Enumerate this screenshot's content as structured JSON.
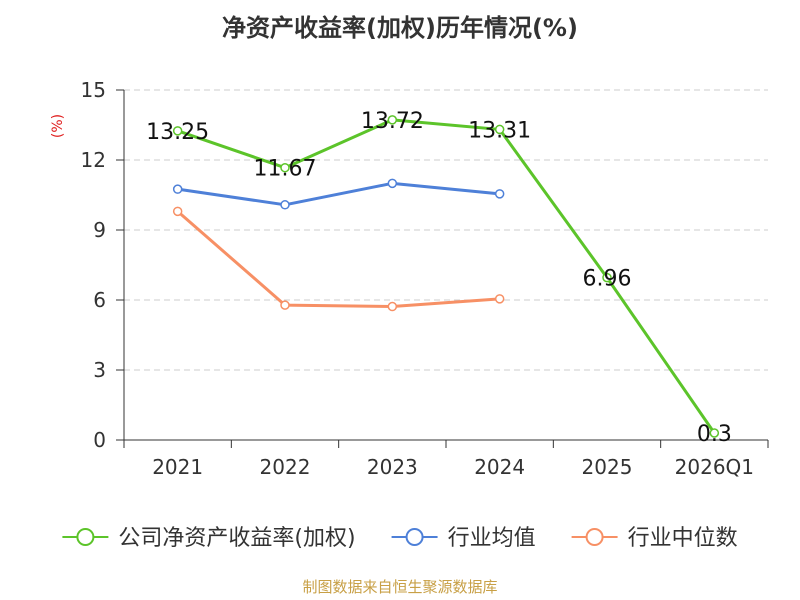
{
  "chart_data": {
    "type": "line",
    "title": "净资产收益率(加权)历年情况(%)",
    "ylabel": "(%)",
    "xlabel": "",
    "categories": [
      "2021",
      "2022",
      "2023",
      "2024",
      "2025",
      "2026Q1"
    ],
    "yticks": [
      "0",
      "3",
      "6",
      "9",
      "12",
      "15"
    ],
    "ylim": [
      0,
      15
    ],
    "grid": true,
    "legend_position": "bottom",
    "series": [
      {
        "name": "公司净资产收益率(加权)",
        "color": "#5cc42a",
        "values": [
          13.25,
          11.67,
          13.72,
          13.31,
          6.96,
          0.3
        ],
        "labels": [
          "13.25",
          "11.67",
          "13.72",
          "13.31",
          "6.96",
          "0.3"
        ],
        "show_labels": true
      },
      {
        "name": "行业均值",
        "color": "#4e80d8",
        "values": [
          10.75,
          10.08,
          11.0,
          10.55,
          null,
          null
        ],
        "show_labels": false
      },
      {
        "name": "行业中位数",
        "color": "#f79065",
        "values": [
          9.8,
          5.78,
          5.72,
          6.05,
          null,
          null
        ],
        "show_labels": false
      }
    ]
  },
  "footer": {
    "source": "制图数据来自恒生聚源数据库"
  }
}
